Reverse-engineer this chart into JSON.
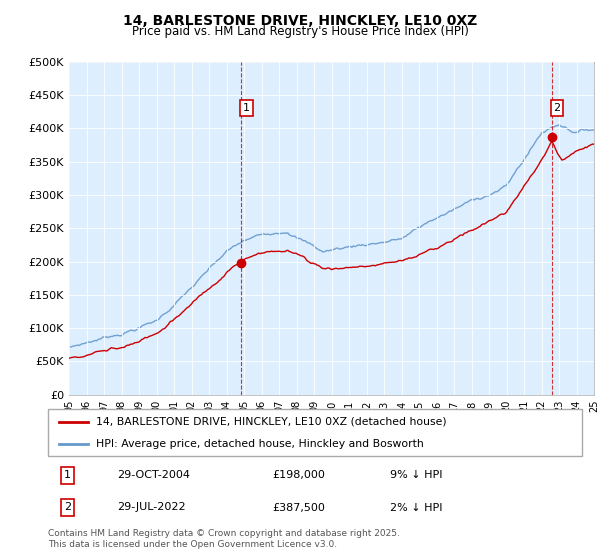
{
  "title": "14, BARLESTONE DRIVE, HINCKLEY, LE10 0XZ",
  "subtitle": "Price paid vs. HM Land Registry's House Price Index (HPI)",
  "ylim": [
    0,
    500000
  ],
  "yticks": [
    0,
    50000,
    100000,
    150000,
    200000,
    250000,
    300000,
    350000,
    400000,
    450000,
    500000
  ],
  "ytick_labels": [
    "£0",
    "£50K",
    "£100K",
    "£150K",
    "£200K",
    "£250K",
    "£300K",
    "£350K",
    "£400K",
    "£450K",
    "£500K"
  ],
  "red_line_color": "#cc0000",
  "blue_line_color": "#6699cc",
  "plot_bg_color": "#ddeeff",
  "grid_color": "#ffffff",
  "bg_color": "#ffffff",
  "marker1_x": 2004.83,
  "marker1_y": 198000,
  "marker2_x": 2022.58,
  "marker2_y": 387500,
  "legend_label_red": "14, BARLESTONE DRIVE, HINCKLEY, LE10 0XZ (detached house)",
  "legend_label_blue": "HPI: Average price, detached house, Hinckley and Bosworth",
  "annotation1_date": "29-OCT-2004",
  "annotation1_price": "£198,000",
  "annotation1_hpi": "9% ↓ HPI",
  "annotation2_date": "29-JUL-2022",
  "annotation2_price": "£387,500",
  "annotation2_hpi": "2% ↓ HPI",
  "footer": "Contains HM Land Registry data © Crown copyright and database right 2025.\nThis data is licensed under the Open Government Licence v3.0.",
  "xmin": 1995,
  "xmax": 2025
}
